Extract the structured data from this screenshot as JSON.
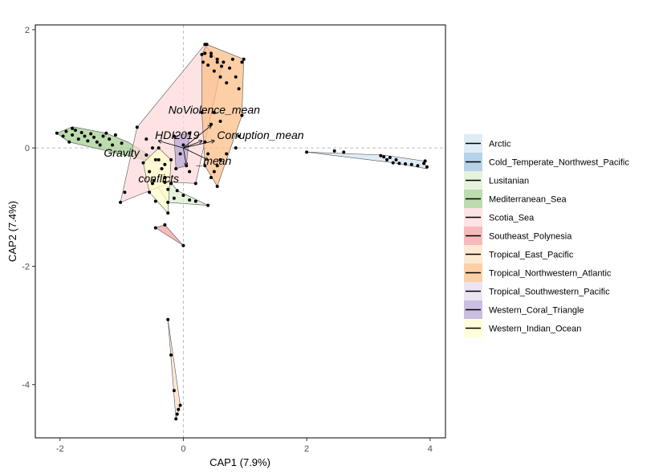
{
  "chart_data": {
    "type": "scatter",
    "title": "",
    "xlabel": "CAP1 (7.9%)",
    "ylabel": "CAP2 (7.4%)",
    "xlim": [
      -2.4,
      4.25
    ],
    "ylim": [
      -4.9,
      2.08
    ],
    "xticks": [
      -2,
      0,
      2,
      4
    ],
    "yticks": [
      -4,
      -2,
      0,
      2
    ],
    "reference_lines": {
      "x": 0,
      "y": 0,
      "style": "dashed"
    },
    "grid": false,
    "legend_position": "right",
    "groups": [
      {
        "name": "Arctic",
        "color": "#d6e6f2",
        "hull": [
          [
            2.0,
            -0.07
          ],
          [
            3.4,
            -0.25
          ],
          [
            3.95,
            -0.35
          ],
          [
            3.9,
            -0.22
          ],
          [
            3.25,
            -0.12
          ]
        ],
        "points": [
          [
            2.0,
            -0.07
          ],
          [
            2.45,
            -0.05
          ],
          [
            2.6,
            -0.07
          ],
          [
            3.2,
            -0.13
          ],
          [
            3.25,
            -0.15
          ],
          [
            3.3,
            -0.2
          ],
          [
            3.35,
            -0.16
          ],
          [
            3.4,
            -0.25
          ],
          [
            3.45,
            -0.2
          ],
          [
            3.5,
            -0.26
          ],
          [
            3.6,
            -0.27
          ],
          [
            3.7,
            -0.28
          ],
          [
            3.8,
            -0.3
          ],
          [
            3.9,
            -0.26
          ],
          [
            3.95,
            -0.32
          ],
          [
            3.92,
            -0.22
          ]
        ]
      },
      {
        "name": "Cold_Temperate_Northwest_Pacific",
        "color": "#9dc3e0",
        "hull": [],
        "points": []
      },
      {
        "name": "Lusitanian",
        "color": "#dcefd0",
        "hull": [
          [
            -0.48,
            -0.55
          ],
          [
            -0.3,
            -0.45
          ],
          [
            -0.1,
            -0.72
          ],
          [
            0.4,
            -0.97
          ],
          [
            -0.25,
            -0.92
          ]
        ],
        "points": [
          [
            -0.48,
            -0.55
          ],
          [
            -0.3,
            -0.5
          ],
          [
            -0.2,
            -0.6
          ],
          [
            -0.1,
            -0.72
          ],
          [
            0.0,
            -0.8
          ],
          [
            0.1,
            -0.88
          ],
          [
            0.2,
            -0.9
          ],
          [
            0.4,
            -0.97
          ],
          [
            -0.25,
            -0.92
          ],
          [
            -0.15,
            -0.85
          ]
        ]
      },
      {
        "name": "Mediterranean_Sea",
        "color": "#a6cf94",
        "hull": [
          [
            -2.05,
            0.25
          ],
          [
            -1.8,
            0.36
          ],
          [
            -1.25,
            0.25
          ],
          [
            -0.9,
            0.1
          ],
          [
            -0.3,
            -0.28
          ],
          [
            -1.85,
            0.1
          ]
        ],
        "points": [
          [
            -2.05,
            0.25
          ],
          [
            -1.95,
            0.2
          ],
          [
            -1.9,
            0.28
          ],
          [
            -1.85,
            0.1
          ],
          [
            -1.8,
            0.22
          ],
          [
            -1.75,
            0.3
          ],
          [
            -1.7,
            0.15
          ],
          [
            -1.6,
            0.2
          ],
          [
            -1.55,
            0.12
          ],
          [
            -1.5,
            0.24
          ],
          [
            -1.45,
            0.18
          ],
          [
            -1.4,
            0.1
          ],
          [
            -1.3,
            0.2
          ],
          [
            -1.25,
            0.25
          ],
          [
            -1.2,
            0.15
          ],
          [
            -1.1,
            0.22
          ],
          [
            -1.0,
            0.08
          ],
          [
            -1.8,
            0.33
          ],
          [
            -1.65,
            0.26
          ],
          [
            -1.35,
            0.05
          ],
          [
            -1.15,
            0.05
          ],
          [
            -0.6,
            -0.12
          ],
          [
            -0.45,
            -0.2
          ],
          [
            -0.3,
            -0.28
          ]
        ]
      },
      {
        "name": "Scotia_Sea",
        "color": "#fcd9d9",
        "hull": [
          [
            -1.02,
            -0.92
          ],
          [
            -0.75,
            0.35
          ],
          [
            0.35,
            1.75
          ],
          [
            0.62,
            1.38
          ],
          [
            0.2,
            -0.6
          ],
          [
            -0.2,
            -0.58
          ]
        ],
        "points": [
          [
            -1.02,
            -0.92
          ],
          [
            -0.95,
            -0.75
          ],
          [
            -0.75,
            0.35
          ],
          [
            -0.6,
            0.15
          ],
          [
            -0.5,
            0.0
          ],
          [
            -0.4,
            -0.2
          ],
          [
            -0.3,
            -0.58
          ],
          [
            0.35,
            1.75
          ],
          [
            0.45,
            1.6
          ],
          [
            0.55,
            1.45
          ],
          [
            0.62,
            1.38
          ],
          [
            0.2,
            -0.6
          ],
          [
            0.1,
            -0.4
          ]
        ]
      },
      {
        "name": "Southeast_Polynesia",
        "color": "#f4a3a3",
        "hull": [
          [
            -0.45,
            -1.35
          ],
          [
            -0.3,
            -1.3
          ],
          [
            0.0,
            -1.65
          ]
        ],
        "points": [
          [
            -0.45,
            -1.35
          ],
          [
            -0.3,
            -1.3
          ],
          [
            0.0,
            -1.65
          ]
        ]
      },
      {
        "name": "Tropical_East_Pacific",
        "color": "#fce0c4",
        "hull": [
          [
            -0.25,
            -2.9
          ],
          [
            -0.05,
            -4.35
          ],
          [
            -0.12,
            -4.58
          ]
        ],
        "points": [
          [
            -0.25,
            -2.9
          ],
          [
            -0.2,
            -3.5
          ],
          [
            -0.15,
            -4.1
          ],
          [
            -0.05,
            -4.35
          ],
          [
            -0.08,
            -4.42
          ],
          [
            -0.1,
            -4.5
          ],
          [
            -0.12,
            -4.58
          ]
        ]
      },
      {
        "name": "Tropical_Northwestern_Atlantic",
        "color": "#fbbf8a",
        "hull": [
          [
            0.3,
            1.58
          ],
          [
            0.38,
            1.75
          ],
          [
            0.98,
            1.5
          ],
          [
            0.95,
            0.55
          ],
          [
            0.55,
            -0.65
          ],
          [
            0.35,
            -0.3
          ],
          [
            0.3,
            0.6
          ]
        ],
        "points": [
          [
            0.3,
            1.58
          ],
          [
            0.32,
            1.45
          ],
          [
            0.35,
            1.6
          ],
          [
            0.38,
            1.75
          ],
          [
            0.4,
            1.4
          ],
          [
            0.45,
            1.55
          ],
          [
            0.5,
            1.3
          ],
          [
            0.55,
            1.5
          ],
          [
            0.6,
            1.2
          ],
          [
            0.65,
            1.45
          ],
          [
            0.7,
            1.1
          ],
          [
            0.75,
            1.35
          ],
          [
            0.8,
            1.5
          ],
          [
            0.85,
            1.2
          ],
          [
            0.9,
            1.0
          ],
          [
            0.95,
            1.45
          ],
          [
            0.98,
            1.5
          ],
          [
            0.95,
            0.55
          ],
          [
            0.9,
            0.2
          ],
          [
            0.85,
            0.0
          ],
          [
            0.7,
            -0.1
          ],
          [
            0.6,
            -0.2
          ],
          [
            0.55,
            -0.3
          ],
          [
            0.5,
            -0.4
          ],
          [
            0.45,
            -0.5
          ],
          [
            0.55,
            -0.65
          ],
          [
            0.35,
            -0.3
          ],
          [
            0.4,
            -0.1
          ],
          [
            0.35,
            0.1
          ],
          [
            0.3,
            0.6
          ],
          [
            0.5,
            0.6
          ],
          [
            0.45,
            0.4
          ],
          [
            0.6,
            0.45
          ]
        ]
      },
      {
        "name": "Tropical_Southwestern_Pacific",
        "color": "#e5dbef",
        "hull": [],
        "points": []
      },
      {
        "name": "Western_Coral_Triangle",
        "color": "#b9a8d6",
        "hull": [
          [
            -0.15,
            0.2
          ],
          [
            0.1,
            0.25
          ],
          [
            0.05,
            -0.3
          ],
          [
            -0.12,
            -0.35
          ]
        ],
        "points": [
          [
            -0.15,
            0.2
          ],
          [
            0.1,
            0.25
          ],
          [
            0.05,
            -0.3
          ],
          [
            -0.12,
            -0.35
          ],
          [
            0.0,
            0.05
          ],
          [
            -0.05,
            -0.1
          ]
        ]
      },
      {
        "name": "Western_Indian_Ocean",
        "color": "#ffffcc",
        "hull": [
          [
            -0.65,
            -0.25
          ],
          [
            -0.4,
            0.0
          ],
          [
            -0.2,
            -0.2
          ],
          [
            -0.25,
            -1.1
          ],
          [
            -0.55,
            -0.75
          ]
        ],
        "points": [
          [
            -0.65,
            -0.25
          ],
          [
            -0.55,
            -0.4
          ],
          [
            -0.5,
            -0.6
          ],
          [
            -0.4,
            0.0
          ],
          [
            -0.35,
            -0.35
          ],
          [
            -0.3,
            -0.5
          ],
          [
            -0.25,
            -0.7
          ],
          [
            -0.2,
            -0.2
          ],
          [
            -0.25,
            -1.1
          ],
          [
            -0.55,
            -0.75
          ],
          [
            -0.45,
            -0.9
          ]
        ]
      }
    ],
    "vectors": [
      {
        "label": "NoViolence_mean",
        "x": 0.45,
        "y": 0.38,
        "label_x": 0.5,
        "label_y": 0.58
      },
      {
        "label": "Corruption_mean",
        "x": 0.5,
        "y": 0.12,
        "label_x": 1.25,
        "label_y": 0.15
      },
      {
        "label": "HDI2019",
        "x": 0.3,
        "y": 0.12,
        "label_x": -0.1,
        "label_y": 0.15
      },
      {
        "label": "Gravity",
        "x": -0.4,
        "y": 0.12,
        "label_x": -1.0,
        "label_y": -0.15
      },
      {
        "label": "conflicts",
        "x": 0.05,
        "y": -0.3,
        "label_x": -0.4,
        "label_y": -0.58
      },
      {
        "label": "_mean",
        "x": 0.4,
        "y": -0.2,
        "label_x": 0.5,
        "label_y": -0.28
      }
    ]
  }
}
